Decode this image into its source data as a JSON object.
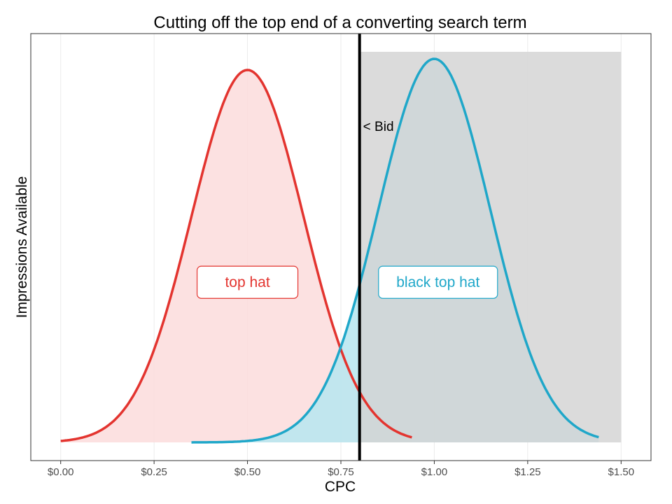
{
  "chart_data": {
    "type": "area",
    "title": "Cutting off the top end of a converting search term",
    "xlabel": "CPC",
    "ylabel": "Impressions Available",
    "xlim": [
      -0.08,
      1.58
    ],
    "x_ticks": [
      0.0,
      0.25,
      0.5,
      0.75,
      1.0,
      1.25,
      1.5
    ],
    "x_tick_labels": [
      "$0.00",
      "$0.25",
      "$0.50",
      "$0.75",
      "$1.00",
      "$1.25",
      "$1.50"
    ],
    "y_ticks_shown": false,
    "grid": "vertical-major",
    "colors": {
      "top_hat_line": "#e3342f",
      "top_hat_fill": "#fbdcdc",
      "black_top_hat_line": "#1fa7c9",
      "black_top_hat_fill": "#b6e6f0",
      "shaded_region": "#d3d3d3",
      "bid_line": "#000000",
      "grid": "#ebebeb",
      "panel_border": "#333333"
    },
    "series": [
      {
        "name": "top hat",
        "distribution": "normal",
        "mean": 0.5,
        "sd": 0.15,
        "x_range": [
          0.0,
          0.94
        ],
        "peak": 1.0
      },
      {
        "name": "black top hat",
        "distribution": "normal",
        "mean": 1.0,
        "sd": 0.15,
        "x_range": [
          0.35,
          1.44
        ],
        "peak": 1.03
      }
    ],
    "shaded_region": {
      "x": [
        0.8,
        1.5
      ],
      "y": [
        0,
        1.05
      ]
    },
    "bid": {
      "x": 0.8,
      "label": "< Bid"
    },
    "labels": [
      {
        "text": "top hat",
        "x": 0.5,
        "y": 0.43,
        "series": "top hat"
      },
      {
        "text": "black top hat",
        "x": 1.01,
        "y": 0.43,
        "series": "black top hat"
      }
    ]
  }
}
